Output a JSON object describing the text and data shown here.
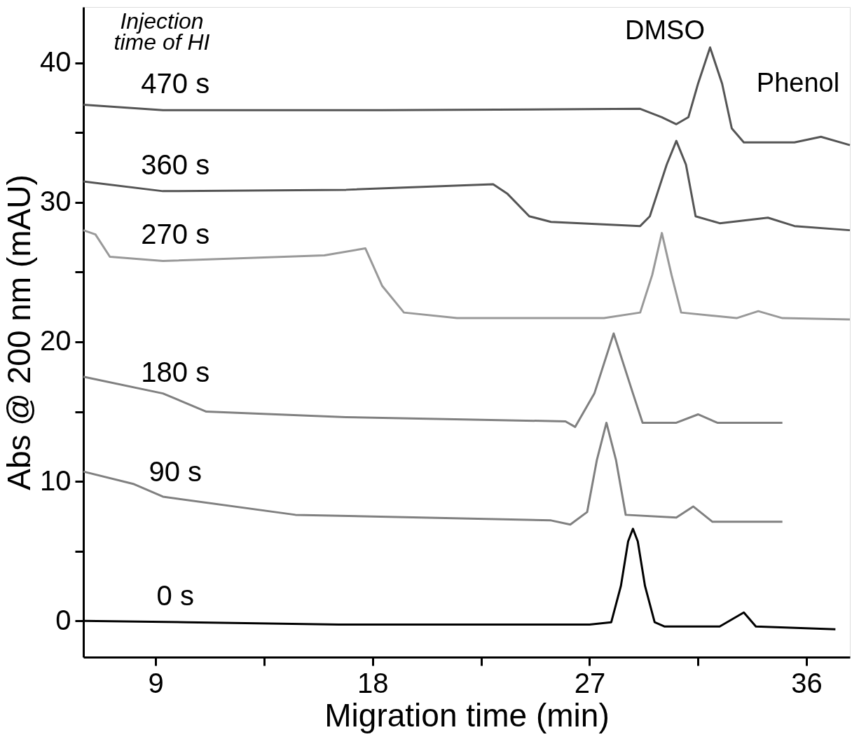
{
  "chart_data": {
    "type": "line",
    "xlabel": "Migration time (min)",
    "ylabel": "Abs @ 200 nm (mAU)",
    "legend_title": "Injection\ntime of HI",
    "xlim": [
      6,
      37.8
    ],
    "ylim": [
      -2.6,
      44
    ],
    "xticks": [
      9,
      {
        "value": 13.5,
        "label": null
      },
      18,
      {
        "value": 22.5,
        "label": null
      },
      27,
      {
        "value": 31.5,
        "label": null
      },
      36
    ],
    "yticks": [
      0,
      {
        "value": 5,
        "label": null
      },
      10,
      {
        "value": 15,
        "label": null
      },
      20,
      {
        "value": 25,
        "label": null
      },
      30,
      {
        "value": 35,
        "label": null
      },
      40
    ],
    "grid": false,
    "legend": false,
    "line_style": "solid",
    "marker": "none",
    "annotations": [
      "DMSO",
      "Phenol"
    ],
    "series": [
      {
        "name": "0 s",
        "color": "#000000",
        "x": [
          6,
          10.3,
          16.6,
          27,
          27.9,
          28.3,
          28.6,
          28.8,
          29.0,
          29.3,
          29.7,
          30.1,
          32.4,
          33.4,
          33.9,
          37.2
        ],
        "values": [
          0,
          -0.1,
          -0.26,
          -0.26,
          -0.1,
          2.5,
          5.7,
          6.6,
          5.7,
          2.5,
          -0.1,
          -0.4,
          -0.4,
          0.6,
          -0.4,
          -0.6
        ]
      },
      {
        "name": "90 s",
        "color": "#808080",
        "x": [
          6,
          8.1,
          9.3,
          14.8,
          25.4,
          26.2,
          26.9,
          27.3,
          27.7,
          28.1,
          28.5,
          30.6,
          31.3,
          32.1,
          35.0
        ],
        "values": [
          10.7,
          9.8,
          8.9,
          7.6,
          7.2,
          6.9,
          7.8,
          11.5,
          14.2,
          11.5,
          7.6,
          7.4,
          8.2,
          7.1,
          7.1
        ]
      },
      {
        "name": "180 s",
        "color": "#808080",
        "x": [
          6,
          9.3,
          11.1,
          16.9,
          26.0,
          26.4,
          27.2,
          28.0,
          28.8,
          29.2,
          30.6,
          31.5,
          32.3,
          35.0
        ],
        "values": [
          17.5,
          16.3,
          15.0,
          14.6,
          14.3,
          13.9,
          16.3,
          20.6,
          16.3,
          14.2,
          14.2,
          14.8,
          14.2,
          14.2
        ]
      },
      {
        "name": "270 s",
        "color": "#999999",
        "x": [
          6,
          6.5,
          7.1,
          9.3,
          16.0,
          17.7,
          18.4,
          19.3,
          21.5,
          27.6,
          29.1,
          29.6,
          30.0,
          30.4,
          30.8,
          33.1,
          34.0,
          35.0,
          37.8
        ],
        "values": [
          28.0,
          27.7,
          26.1,
          25.8,
          26.2,
          26.7,
          24.0,
          22.1,
          21.7,
          21.7,
          22.1,
          24.8,
          27.8,
          24.8,
          22.1,
          21.7,
          22.2,
          21.7,
          21.6
        ]
      },
      {
        "name": "360 s",
        "color": "#555555",
        "x": [
          6,
          9.3,
          16.9,
          23.0,
          23.6,
          24.5,
          25.4,
          29.1,
          29.5,
          30.2,
          30.6,
          31.0,
          31.4,
          32.4,
          34.4,
          35.5,
          37.8
        ],
        "values": [
          31.5,
          30.8,
          30.9,
          31.3,
          30.6,
          29.0,
          28.6,
          28.3,
          29.0,
          32.7,
          34.4,
          32.7,
          29.0,
          28.5,
          28.9,
          28.3,
          28.0
        ]
      },
      {
        "name": "470 s",
        "color": "#555555",
        "x": [
          6,
          9.3,
          18.4,
          29.1,
          30.0,
          30.6,
          31.1,
          31.5,
          32.0,
          32.5,
          32.9,
          33.4,
          35.5,
          36.6,
          37.8
        ],
        "values": [
          37.0,
          36.6,
          36.6,
          36.7,
          36.1,
          35.6,
          36.1,
          38.5,
          41.1,
          38.5,
          35.3,
          34.3,
          34.3,
          34.7,
          34.1
        ]
      }
    ]
  }
}
